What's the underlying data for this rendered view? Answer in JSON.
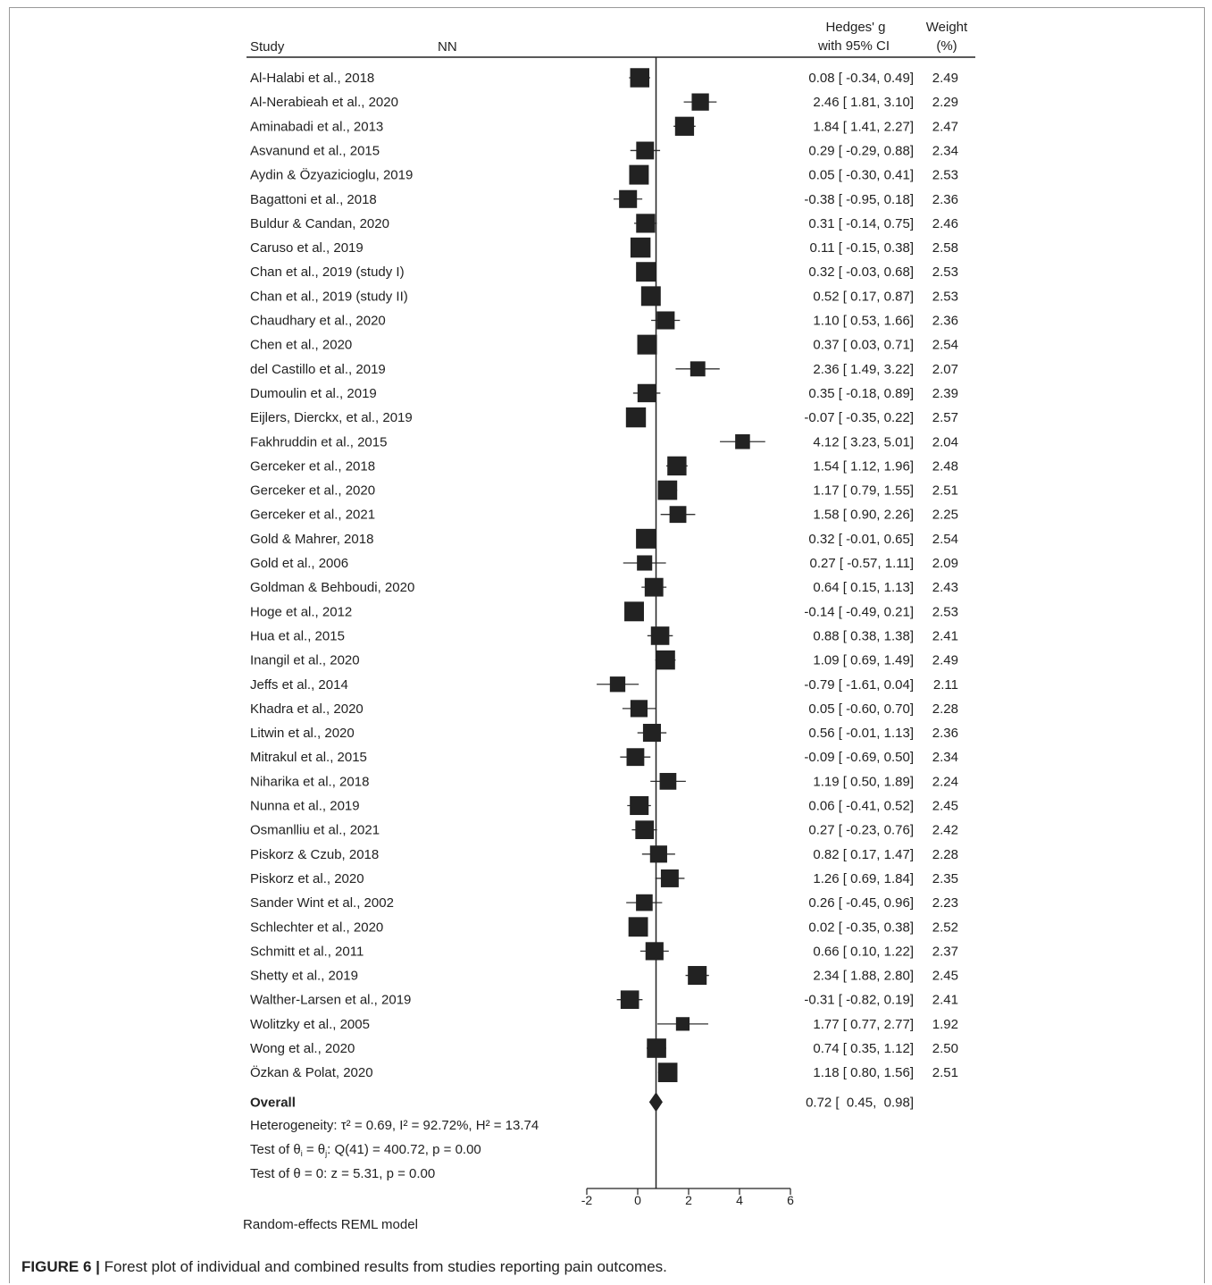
{
  "header": {
    "study": "Study",
    "nn": "NN",
    "effect_line1": "Hedges' g",
    "effect_line2": "with 95% CI",
    "weight_line1": "Weight",
    "weight_line2": "(%)"
  },
  "chart_data": {
    "type": "forest",
    "xlim": [
      -2,
      6
    ],
    "xticks": [
      "-2",
      "0",
      "2",
      "4",
      "6"
    ],
    "reference_line": 0.72,
    "rows": [
      {
        "study": "Al-Halabi et al., 2018",
        "g": 0.08,
        "lo": -0.34,
        "hi": 0.49,
        "ci": "0.08 [ -0.34,  0.49]",
        "weight": "2.49"
      },
      {
        "study": "Al-Nerabieah et al., 2020",
        "g": 2.46,
        "lo": 1.81,
        "hi": 3.1,
        "ci": "2.46 [  1.81,  3.10]",
        "weight": "2.29"
      },
      {
        "study": "Aminabadi et al., 2013",
        "g": 1.84,
        "lo": 1.41,
        "hi": 2.27,
        "ci": "1.84 [  1.41,  2.27]",
        "weight": "2.47"
      },
      {
        "study": "Asvanund et al., 2015",
        "g": 0.29,
        "lo": -0.29,
        "hi": 0.88,
        "ci": "0.29 [ -0.29,  0.88]",
        "weight": "2.34"
      },
      {
        "study": "Aydin & Özyazicioglu, 2019",
        "g": 0.05,
        "lo": -0.3,
        "hi": 0.41,
        "ci": "0.05 [ -0.30,  0.41]",
        "weight": "2.53"
      },
      {
        "study": "Bagattoni et al., 2018",
        "g": -0.38,
        "lo": -0.95,
        "hi": 0.18,
        "ci": "-0.38 [ -0.95,  0.18]",
        "weight": "2.36"
      },
      {
        "study": "Buldur & Candan, 2020",
        "g": 0.31,
        "lo": -0.14,
        "hi": 0.75,
        "ci": "0.31 [ -0.14,  0.75]",
        "weight": "2.46"
      },
      {
        "study": "Caruso et al., 2019",
        "g": 0.11,
        "lo": -0.15,
        "hi": 0.38,
        "ci": "0.11 [ -0.15,  0.38]",
        "weight": "2.58"
      },
      {
        "study": "Chan et al., 2019 (study I)",
        "g": 0.32,
        "lo": -0.03,
        "hi": 0.68,
        "ci": "0.32 [ -0.03,  0.68]",
        "weight": "2.53"
      },
      {
        "study": "Chan et al., 2019 (study II)",
        "g": 0.52,
        "lo": 0.17,
        "hi": 0.87,
        "ci": "0.52 [  0.17,  0.87]",
        "weight": "2.53"
      },
      {
        "study": "Chaudhary et al., 2020",
        "g": 1.1,
        "lo": 0.53,
        "hi": 1.66,
        "ci": "1.10 [  0.53,  1.66]",
        "weight": "2.36"
      },
      {
        "study": "Chen et al., 2020",
        "g": 0.37,
        "lo": 0.03,
        "hi": 0.71,
        "ci": "0.37 [  0.03,  0.71]",
        "weight": "2.54"
      },
      {
        "study": "del Castillo et al., 2019",
        "g": 2.36,
        "lo": 1.49,
        "hi": 3.22,
        "ci": "2.36 [  1.49,  3.22]",
        "weight": "2.07"
      },
      {
        "study": "Dumoulin et al., 2019",
        "g": 0.35,
        "lo": -0.18,
        "hi": 0.89,
        "ci": "0.35 [ -0.18,  0.89]",
        "weight": "2.39"
      },
      {
        "study": "Eijlers, Dierckx, et al., 2019",
        "g": -0.07,
        "lo": -0.35,
        "hi": 0.22,
        "ci": "-0.07 [ -0.35,  0.22]",
        "weight": "2.57"
      },
      {
        "study": "Fakhruddin et al., 2015",
        "g": 4.12,
        "lo": 3.23,
        "hi": 5.01,
        "ci": "4.12 [  3.23,  5.01]",
        "weight": "2.04"
      },
      {
        "study": "Gerceker et al., 2018",
        "g": 1.54,
        "lo": 1.12,
        "hi": 1.96,
        "ci": "1.54 [  1.12,  1.96]",
        "weight": "2.48"
      },
      {
        "study": "Gerceker et al., 2020",
        "g": 1.17,
        "lo": 0.79,
        "hi": 1.55,
        "ci": "1.17 [  0.79,  1.55]",
        "weight": "2.51"
      },
      {
        "study": "Gerceker et al., 2021",
        "g": 1.58,
        "lo": 0.9,
        "hi": 2.26,
        "ci": "1.58 [  0.90,  2.26]",
        "weight": "2.25"
      },
      {
        "study": "Gold & Mahrer, 2018",
        "g": 0.32,
        "lo": -0.01,
        "hi": 0.65,
        "ci": "0.32 [ -0.01,  0.65]",
        "weight": "2.54"
      },
      {
        "study": "Gold et al., 2006",
        "g": 0.27,
        "lo": -0.57,
        "hi": 1.11,
        "ci": "0.27 [ -0.57,  1.11]",
        "weight": "2.09"
      },
      {
        "study": "Goldman & Behboudi, 2020",
        "g": 0.64,
        "lo": 0.15,
        "hi": 1.13,
        "ci": "0.64 [  0.15,  1.13]",
        "weight": "2.43"
      },
      {
        "study": "Hoge et al., 2012",
        "g": -0.14,
        "lo": -0.49,
        "hi": 0.21,
        "ci": "-0.14 [ -0.49,  0.21]",
        "weight": "2.53"
      },
      {
        "study": "Hua et al., 2015",
        "g": 0.88,
        "lo": 0.38,
        "hi": 1.38,
        "ci": "0.88 [  0.38,  1.38]",
        "weight": "2.41"
      },
      {
        "study": "Inangil et al., 2020",
        "g": 1.09,
        "lo": 0.69,
        "hi": 1.49,
        "ci": "1.09 [  0.69,  1.49]",
        "weight": "2.49"
      },
      {
        "study": "Jeffs et al., 2014",
        "g": -0.79,
        "lo": -1.61,
        "hi": 0.04,
        "ci": "-0.79 [ -1.61,  0.04]",
        "weight": "2.11"
      },
      {
        "study": "Khadra et al., 2020",
        "g": 0.05,
        "lo": -0.6,
        "hi": 0.7,
        "ci": "0.05 [ -0.60,  0.70]",
        "weight": "2.28"
      },
      {
        "study": "Litwin et al., 2020",
        "g": 0.56,
        "lo": -0.01,
        "hi": 1.13,
        "ci": "0.56 [ -0.01,  1.13]",
        "weight": "2.36"
      },
      {
        "study": "Mitrakul et al., 2015",
        "g": -0.09,
        "lo": -0.69,
        "hi": 0.5,
        "ci": "-0.09 [ -0.69,  0.50]",
        "weight": "2.34"
      },
      {
        "study": "Niharika et al., 2018",
        "g": 1.19,
        "lo": 0.5,
        "hi": 1.89,
        "ci": "1.19 [  0.50,  1.89]",
        "weight": "2.24"
      },
      {
        "study": "Nunna et al., 2019",
        "g": 0.06,
        "lo": -0.41,
        "hi": 0.52,
        "ci": "0.06 [ -0.41,  0.52]",
        "weight": "2.45"
      },
      {
        "study": "Osmanlliu et al., 2021",
        "g": 0.27,
        "lo": -0.23,
        "hi": 0.76,
        "ci": "0.27 [ -0.23,  0.76]",
        "weight": "2.42"
      },
      {
        "study": "Piskorz & Czub, 2018",
        "g": 0.82,
        "lo": 0.17,
        "hi": 1.47,
        "ci": "0.82 [  0.17,  1.47]",
        "weight": "2.28"
      },
      {
        "study": "Piskorz et al., 2020",
        "g": 1.26,
        "lo": 0.69,
        "hi": 1.84,
        "ci": "1.26 [  0.69,  1.84]",
        "weight": "2.35"
      },
      {
        "study": "Sander Wint et al., 2002",
        "g": 0.26,
        "lo": -0.45,
        "hi": 0.96,
        "ci": "0.26 [ -0.45,  0.96]",
        "weight": "2.23"
      },
      {
        "study": "Schlechter et al., 2020",
        "g": 0.02,
        "lo": -0.35,
        "hi": 0.38,
        "ci": "0.02 [ -0.35,  0.38]",
        "weight": "2.52"
      },
      {
        "study": "Schmitt et al., 2011",
        "g": 0.66,
        "lo": 0.1,
        "hi": 1.22,
        "ci": "0.66 [  0.10,  1.22]",
        "weight": "2.37"
      },
      {
        "study": "Shetty et al., 2019",
        "g": 2.34,
        "lo": 1.88,
        "hi": 2.8,
        "ci": "2.34 [  1.88,  2.80]",
        "weight": "2.45"
      },
      {
        "study": "Walther-Larsen et al., 2019",
        "g": -0.31,
        "lo": -0.82,
        "hi": 0.19,
        "ci": "-0.31 [ -0.82,  0.19]",
        "weight": "2.41"
      },
      {
        "study": "Wolitzky et al., 2005",
        "g": 1.77,
        "lo": 0.77,
        "hi": 2.77,
        "ci": "1.77 [  0.77,  2.77]",
        "weight": "1.92"
      },
      {
        "study": "Wong et al., 2020",
        "g": 0.74,
        "lo": 0.35,
        "hi": 1.12,
        "ci": "0.74 [  0.35,  1.12]",
        "weight": "2.50"
      },
      {
        "study": "Özkan & Polat, 2020",
        "g": 1.18,
        "lo": 0.8,
        "hi": 1.56,
        "ci": "1.18 [  0.80,  1.56]",
        "weight": "2.51"
      }
    ],
    "overall": {
      "label": "Overall",
      "g": 0.72,
      "lo": 0.45,
      "hi": 0.98,
      "ci": "0.72 [  0.45,  0.98]"
    },
    "footer": {
      "heterogeneity": "Heterogeneity: τ² = 0.69, I² = 92.72%, H² = 13.74",
      "test_theta_prefix": "Test of θ",
      "test_theta_i": "i",
      "test_theta_mid": " = θ",
      "test_theta_j": "j",
      "test_theta_suffix": ": Q(41) = 400.72, p = 0.00",
      "test_zero": "Test of θ = 0: z = 5.31, p = 0.00",
      "model": "Random-effects REML model"
    }
  },
  "caption": {
    "label": "FIGURE 6 |",
    "text": " Forest plot of individual and combined results from studies reporting pain outcomes."
  }
}
